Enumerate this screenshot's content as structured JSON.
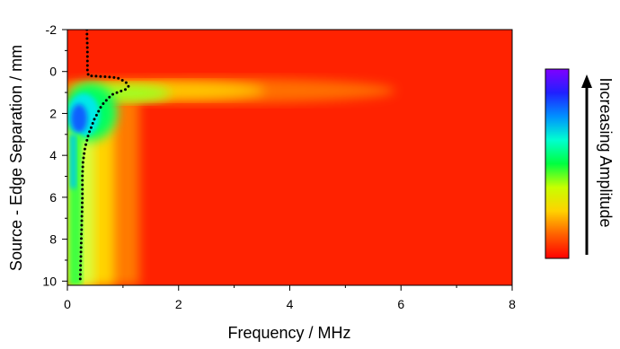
{
  "chart_data": {
    "type": "heatmap",
    "title": "",
    "xlabel": "Frequency / MHz",
    "ylabel": "Source - Edge Separation / mm",
    "xlim": [
      0,
      8
    ],
    "ylim": [
      -2,
      10.2
    ],
    "y_inverted": true,
    "xticks": [
      0,
      2,
      4,
      6,
      8
    ],
    "yticks": [
      -2,
      0,
      2,
      4,
      6,
      8,
      10
    ],
    "colorbar": {
      "label": "Increasing Amplitude",
      "colormap": [
        "#ff0000",
        "#ff6000",
        "#ffd200",
        "#c8ff00",
        "#00ff40",
        "#00ffd0",
        "#0090ff",
        "#2020ff",
        "#8000ff"
      ]
    },
    "background_color": "#ff2000",
    "high_amplitude_ridge": [
      {
        "x": 0.55,
        "y": 0.9
      },
      {
        "x": 1.0,
        "y": 1.1
      },
      {
        "x": 2.0,
        "y": 1.2
      },
      {
        "x": 3.5,
        "y": 1.3
      }
    ],
    "dotted_line": [
      {
        "x": 0.35,
        "y": -2.0
      },
      {
        "x": 0.36,
        "y": -1.0
      },
      {
        "x": 0.36,
        "y": 0.0
      },
      {
        "x": 0.38,
        "y": 0.2
      },
      {
        "x": 0.7,
        "y": 0.25
      },
      {
        "x": 0.9,
        "y": 0.3
      },
      {
        "x": 1.05,
        "y": 0.5
      },
      {
        "x": 1.1,
        "y": 0.7
      },
      {
        "x": 1.05,
        "y": 0.85
      },
      {
        "x": 0.8,
        "y": 1.1
      },
      {
        "x": 0.62,
        "y": 1.6
      },
      {
        "x": 0.48,
        "y": 2.3
      },
      {
        "x": 0.38,
        "y": 3.0
      },
      {
        "x": 0.32,
        "y": 3.6
      },
      {
        "x": 0.28,
        "y": 4.3
      },
      {
        "x": 0.27,
        "y": 5.0
      },
      {
        "x": 0.27,
        "y": 6.0
      },
      {
        "x": 0.26,
        "y": 7.0
      },
      {
        "x": 0.25,
        "y": 8.0
      },
      {
        "x": 0.24,
        "y": 9.0
      },
      {
        "x": 0.23,
        "y": 10.0
      }
    ]
  }
}
